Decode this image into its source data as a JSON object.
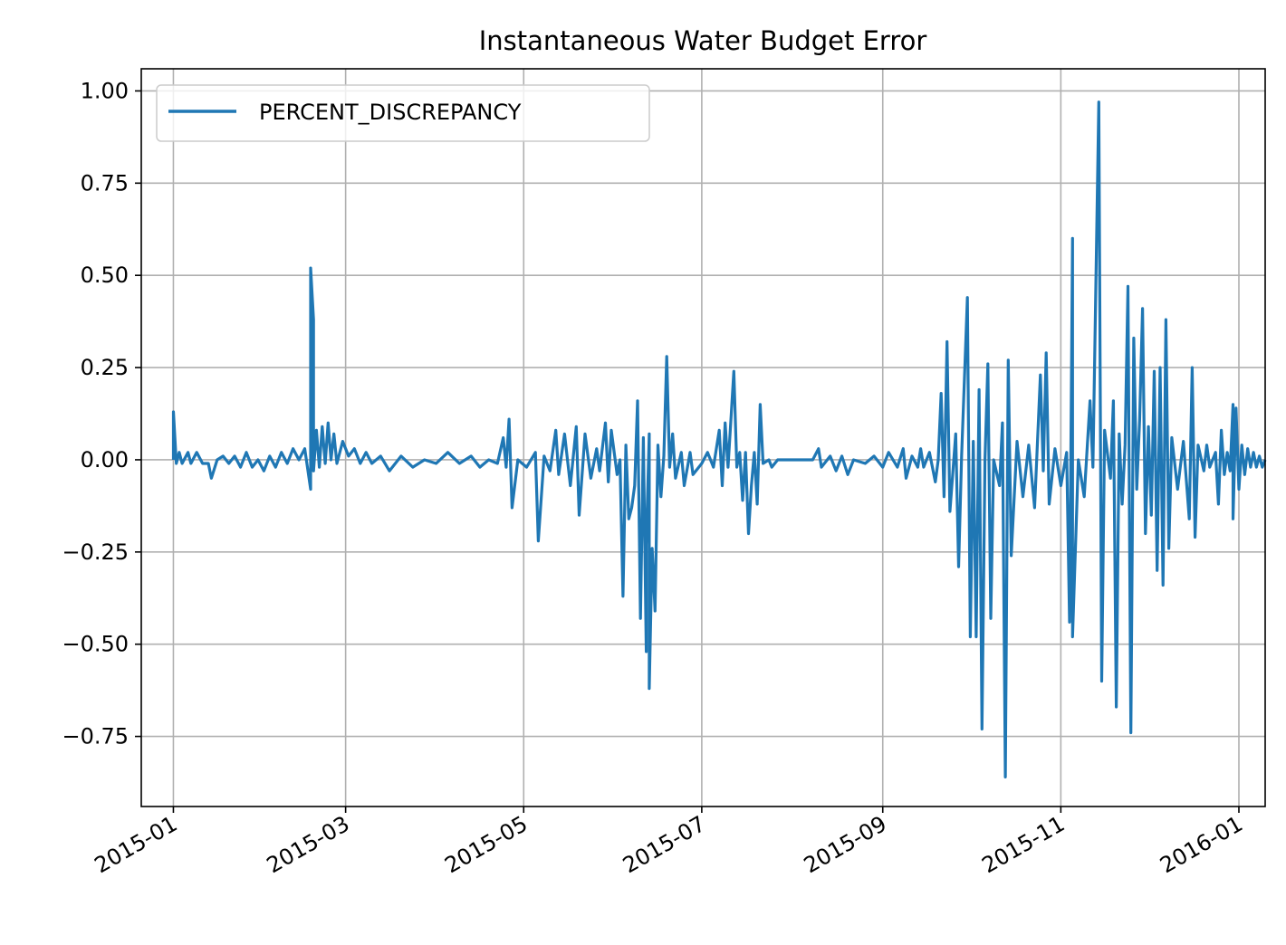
{
  "chart_data": {
    "type": "line",
    "title": "Instantaneous Water Budget Error",
    "xlabel": "",
    "ylabel": "",
    "x_axis_kind": "date",
    "xlim": [
      "2014-12-21",
      "2016-01-10"
    ],
    "ylim": [
      -0.94,
      1.06
    ],
    "grid": true,
    "legend_position": "upper left",
    "x_ticks": [
      "2015-01",
      "2015-03",
      "2015-05",
      "2015-07",
      "2015-09",
      "2015-11",
      "2016-01"
    ],
    "y_ticks": [
      {
        "value": 1.0,
        "label": "1.00"
      },
      {
        "value": 0.75,
        "label": "0.75"
      },
      {
        "value": 0.5,
        "label": "0.50"
      },
      {
        "value": 0.25,
        "label": "0.25"
      },
      {
        "value": 0.0,
        "label": "0.00"
      },
      {
        "value": -0.25,
        "label": "−0.25"
      },
      {
        "value": -0.5,
        "label": "−0.50"
      },
      {
        "value": -0.75,
        "label": "−0.75"
      }
    ],
    "series": [
      {
        "name": "PERCENT_DISCREPANCY",
        "color": "#1f77b4",
        "points": [
          [
            "2015-01-01",
            0.0
          ],
          [
            "2015-01-01",
            0.13
          ],
          [
            "2015-01-02",
            -0.01
          ],
          [
            "2015-01-03",
            0.02
          ],
          [
            "2015-01-04",
            -0.01
          ],
          [
            "2015-01-06",
            0.02
          ],
          [
            "2015-01-07",
            -0.01
          ],
          [
            "2015-01-09",
            0.02
          ],
          [
            "2015-01-11",
            -0.01
          ],
          [
            "2015-01-13",
            -0.01
          ],
          [
            "2015-01-14",
            -0.05
          ],
          [
            "2015-01-16",
            0.0
          ],
          [
            "2015-01-18",
            0.01
          ],
          [
            "2015-01-20",
            -0.01
          ],
          [
            "2015-01-22",
            0.01
          ],
          [
            "2015-01-24",
            -0.02
          ],
          [
            "2015-01-26",
            0.02
          ],
          [
            "2015-01-28",
            -0.02
          ],
          [
            "2015-01-30",
            0.0
          ],
          [
            "2015-02-01",
            -0.03
          ],
          [
            "2015-02-03",
            0.01
          ],
          [
            "2015-02-05",
            -0.02
          ],
          [
            "2015-02-07",
            0.02
          ],
          [
            "2015-02-09",
            -0.01
          ],
          [
            "2015-02-11",
            0.03
          ],
          [
            "2015-02-13",
            0.0
          ],
          [
            "2015-02-15",
            0.03
          ],
          [
            "2015-02-17",
            -0.08
          ],
          [
            "2015-02-17",
            0.52
          ],
          [
            "2015-02-18",
            0.38
          ],
          [
            "2015-02-18",
            -0.03
          ],
          [
            "2015-02-19",
            0.08
          ],
          [
            "2015-02-20",
            -0.02
          ],
          [
            "2015-02-21",
            0.09
          ],
          [
            "2015-02-22",
            -0.01
          ],
          [
            "2015-02-23",
            0.1
          ],
          [
            "2015-02-24",
            0.0
          ],
          [
            "2015-02-25",
            0.07
          ],
          [
            "2015-02-26",
            -0.01
          ],
          [
            "2015-02-28",
            0.05
          ],
          [
            "2015-03-02",
            0.01
          ],
          [
            "2015-03-04",
            0.03
          ],
          [
            "2015-03-06",
            -0.01
          ],
          [
            "2015-03-08",
            0.02
          ],
          [
            "2015-03-10",
            -0.01
          ],
          [
            "2015-03-13",
            0.01
          ],
          [
            "2015-03-16",
            -0.03
          ],
          [
            "2015-03-20",
            0.01
          ],
          [
            "2015-03-24",
            -0.02
          ],
          [
            "2015-03-28",
            0.0
          ],
          [
            "2015-04-01",
            -0.01
          ],
          [
            "2015-04-05",
            0.02
          ],
          [
            "2015-04-09",
            -0.01
          ],
          [
            "2015-04-13",
            0.01
          ],
          [
            "2015-04-16",
            -0.02
          ],
          [
            "2015-04-19",
            0.0
          ],
          [
            "2015-04-22",
            -0.01
          ],
          [
            "2015-04-24",
            0.06
          ],
          [
            "2015-04-25",
            -0.02
          ],
          [
            "2015-04-26",
            0.11
          ],
          [
            "2015-04-27",
            -0.13
          ],
          [
            "2015-04-29",
            0.0
          ],
          [
            "2015-05-02",
            -0.02
          ],
          [
            "2015-05-05",
            0.02
          ],
          [
            "2015-05-06",
            -0.22
          ],
          [
            "2015-05-08",
            0.01
          ],
          [
            "2015-05-10",
            -0.03
          ],
          [
            "2015-05-12",
            0.08
          ],
          [
            "2015-05-13",
            -0.04
          ],
          [
            "2015-05-15",
            0.07
          ],
          [
            "2015-05-17",
            -0.07
          ],
          [
            "2015-05-19",
            0.09
          ],
          [
            "2015-05-20",
            -0.15
          ],
          [
            "2015-05-22",
            0.07
          ],
          [
            "2015-05-24",
            -0.05
          ],
          [
            "2015-05-26",
            0.03
          ],
          [
            "2015-05-27",
            -0.03
          ],
          [
            "2015-05-29",
            0.1
          ],
          [
            "2015-05-30",
            -0.06
          ],
          [
            "2015-05-31",
            0.08
          ],
          [
            "2015-06-02",
            -0.04
          ],
          [
            "2015-06-03",
            0.0
          ],
          [
            "2015-06-04",
            -0.37
          ],
          [
            "2015-06-05",
            0.04
          ],
          [
            "2015-06-06",
            -0.16
          ],
          [
            "2015-06-07",
            -0.13
          ],
          [
            "2015-06-08",
            -0.07
          ],
          [
            "2015-06-09",
            0.16
          ],
          [
            "2015-06-10",
            -0.43
          ],
          [
            "2015-06-11",
            0.06
          ],
          [
            "2015-06-12",
            -0.52
          ],
          [
            "2015-06-12",
            -0.23
          ],
          [
            "2015-06-13",
            0.07
          ],
          [
            "2015-06-13",
            -0.62
          ],
          [
            "2015-06-14",
            -0.24
          ],
          [
            "2015-06-15",
            -0.41
          ],
          [
            "2015-06-16",
            0.04
          ],
          [
            "2015-06-17",
            -0.1
          ],
          [
            "2015-06-18",
            0.01
          ],
          [
            "2015-06-19",
            0.28
          ],
          [
            "2015-06-20",
            -0.02
          ],
          [
            "2015-06-21",
            0.07
          ],
          [
            "2015-06-22",
            -0.05
          ],
          [
            "2015-06-24",
            0.02
          ],
          [
            "2015-06-25",
            -0.07
          ],
          [
            "2015-06-27",
            0.02
          ],
          [
            "2015-06-28",
            -0.04
          ],
          [
            "2015-07-01",
            -0.01
          ],
          [
            "2015-07-03",
            0.02
          ],
          [
            "2015-07-05",
            -0.02
          ],
          [
            "2015-07-07",
            0.08
          ],
          [
            "2015-07-08",
            -0.07
          ],
          [
            "2015-07-09",
            0.1
          ],
          [
            "2015-07-10",
            -0.02
          ],
          [
            "2015-07-12",
            0.24
          ],
          [
            "2015-07-13",
            -0.02
          ],
          [
            "2015-07-14",
            0.02
          ],
          [
            "2015-07-15",
            -0.11
          ],
          [
            "2015-07-16",
            0.02
          ],
          [
            "2015-07-17",
            -0.2
          ],
          [
            "2015-07-18",
            -0.07
          ],
          [
            "2015-07-19",
            0.02
          ],
          [
            "2015-07-20",
            -0.12
          ],
          [
            "2015-07-21",
            0.15
          ],
          [
            "2015-07-22",
            -0.01
          ],
          [
            "2015-07-24",
            0.0
          ],
          [
            "2015-07-25",
            -0.02
          ],
          [
            "2015-07-27",
            0.0
          ],
          [
            "2015-08-01",
            0.0
          ],
          [
            "2015-08-08",
            0.0
          ],
          [
            "2015-08-10",
            0.03
          ],
          [
            "2015-08-11",
            -0.02
          ],
          [
            "2015-08-14",
            0.01
          ],
          [
            "2015-08-16",
            -0.03
          ],
          [
            "2015-08-18",
            0.01
          ],
          [
            "2015-08-20",
            -0.04
          ],
          [
            "2015-08-22",
            0.0
          ],
          [
            "2015-08-26",
            -0.01
          ],
          [
            "2015-08-29",
            0.01
          ],
          [
            "2015-09-01",
            -0.02
          ],
          [
            "2015-09-03",
            0.02
          ],
          [
            "2015-09-06",
            -0.02
          ],
          [
            "2015-09-08",
            0.03
          ],
          [
            "2015-09-09",
            -0.05
          ],
          [
            "2015-09-11",
            0.01
          ],
          [
            "2015-09-13",
            -0.02
          ],
          [
            "2015-09-14",
            0.03
          ],
          [
            "2015-09-15",
            -0.02
          ],
          [
            "2015-09-17",
            0.02
          ],
          [
            "2015-09-19",
            -0.06
          ],
          [
            "2015-09-20",
            0.0
          ],
          [
            "2015-09-21",
            0.18
          ],
          [
            "2015-09-22",
            -0.1
          ],
          [
            "2015-09-23",
            0.32
          ],
          [
            "2015-09-24",
            -0.14
          ],
          [
            "2015-09-26",
            0.07
          ],
          [
            "2015-09-27",
            -0.29
          ],
          [
            "2015-09-28",
            0.01
          ],
          [
            "2015-09-30",
            0.44
          ],
          [
            "2015-10-01",
            -0.48
          ],
          [
            "2015-10-02",
            0.05
          ],
          [
            "2015-10-03",
            -0.48
          ],
          [
            "2015-10-04",
            0.19
          ],
          [
            "2015-10-05",
            -0.73
          ],
          [
            "2015-10-06",
            0.0
          ],
          [
            "2015-10-07",
            0.26
          ],
          [
            "2015-10-08",
            -0.43
          ],
          [
            "2015-10-09",
            0.0
          ],
          [
            "2015-10-11",
            -0.07
          ],
          [
            "2015-10-12",
            0.1
          ],
          [
            "2015-10-13",
            -0.86
          ],
          [
            "2015-10-14",
            0.27
          ],
          [
            "2015-10-15",
            -0.26
          ],
          [
            "2015-10-17",
            0.05
          ],
          [
            "2015-10-19",
            -0.1
          ],
          [
            "2015-10-21",
            0.04
          ],
          [
            "2015-10-23",
            -0.13
          ],
          [
            "2015-10-25",
            0.23
          ],
          [
            "2015-10-26",
            -0.03
          ],
          [
            "2015-10-27",
            0.29
          ],
          [
            "2015-10-28",
            -0.12
          ],
          [
            "2015-10-30",
            0.03
          ],
          [
            "2015-11-01",
            -0.07
          ],
          [
            "2015-11-03",
            0.02
          ],
          [
            "2015-11-04",
            -0.44
          ],
          [
            "2015-11-05",
            0.6
          ],
          [
            "2015-11-05",
            -0.48
          ],
          [
            "2015-11-07",
            0.0
          ],
          [
            "2015-11-09",
            -0.1
          ],
          [
            "2015-11-11",
            0.16
          ],
          [
            "2015-11-12",
            -0.02
          ],
          [
            "2015-11-14",
            0.97
          ],
          [
            "2015-11-15",
            -0.6
          ],
          [
            "2015-11-16",
            0.08
          ],
          [
            "2015-11-18",
            -0.05
          ],
          [
            "2015-11-19",
            0.16
          ],
          [
            "2015-11-20",
            -0.67
          ],
          [
            "2015-11-21",
            0.07
          ],
          [
            "2015-11-22",
            -0.12
          ],
          [
            "2015-11-23",
            0.04
          ],
          [
            "2015-11-24",
            0.47
          ],
          [
            "2015-11-25",
            -0.74
          ],
          [
            "2015-11-26",
            0.33
          ],
          [
            "2015-11-27",
            -0.08
          ],
          [
            "2015-11-28",
            0.11
          ],
          [
            "2015-11-29",
            0.41
          ],
          [
            "2015-11-30",
            -0.2
          ],
          [
            "2015-12-01",
            0.09
          ],
          [
            "2015-12-02",
            -0.15
          ],
          [
            "2015-12-03",
            0.24
          ],
          [
            "2015-12-04",
            -0.3
          ],
          [
            "2015-12-05",
            0.25
          ],
          [
            "2015-12-06",
            -0.34
          ],
          [
            "2015-12-07",
            0.38
          ],
          [
            "2015-12-08",
            -0.24
          ],
          [
            "2015-12-09",
            0.06
          ],
          [
            "2015-12-11",
            -0.08
          ],
          [
            "2015-12-13",
            0.05
          ],
          [
            "2015-12-15",
            -0.16
          ],
          [
            "2015-12-16",
            0.25
          ],
          [
            "2015-12-17",
            -0.21
          ],
          [
            "2015-12-18",
            0.04
          ],
          [
            "2015-12-20",
            -0.03
          ],
          [
            "2015-12-21",
            0.04
          ],
          [
            "2015-12-22",
            -0.02
          ],
          [
            "2015-12-24",
            0.02
          ],
          [
            "2015-12-25",
            -0.12
          ],
          [
            "2015-12-26",
            0.08
          ],
          [
            "2015-12-27",
            -0.04
          ],
          [
            "2015-12-28",
            0.02
          ],
          [
            "2015-12-29",
            -0.03
          ],
          [
            "2015-12-30",
            0.15
          ],
          [
            "2015-12-30",
            -0.16
          ],
          [
            "2015-12-31",
            0.14
          ],
          [
            "2016-01-01",
            -0.08
          ],
          [
            "2016-01-02",
            0.04
          ],
          [
            "2016-01-03",
            -0.04
          ],
          [
            "2016-01-04",
            0.03
          ],
          [
            "2016-01-05",
            -0.02
          ],
          [
            "2016-01-06",
            0.02
          ],
          [
            "2016-01-07",
            -0.02
          ],
          [
            "2016-01-08",
            0.01
          ],
          [
            "2016-01-09",
            -0.02
          ],
          [
            "2016-01-10",
            0.0
          ]
        ]
      }
    ]
  }
}
